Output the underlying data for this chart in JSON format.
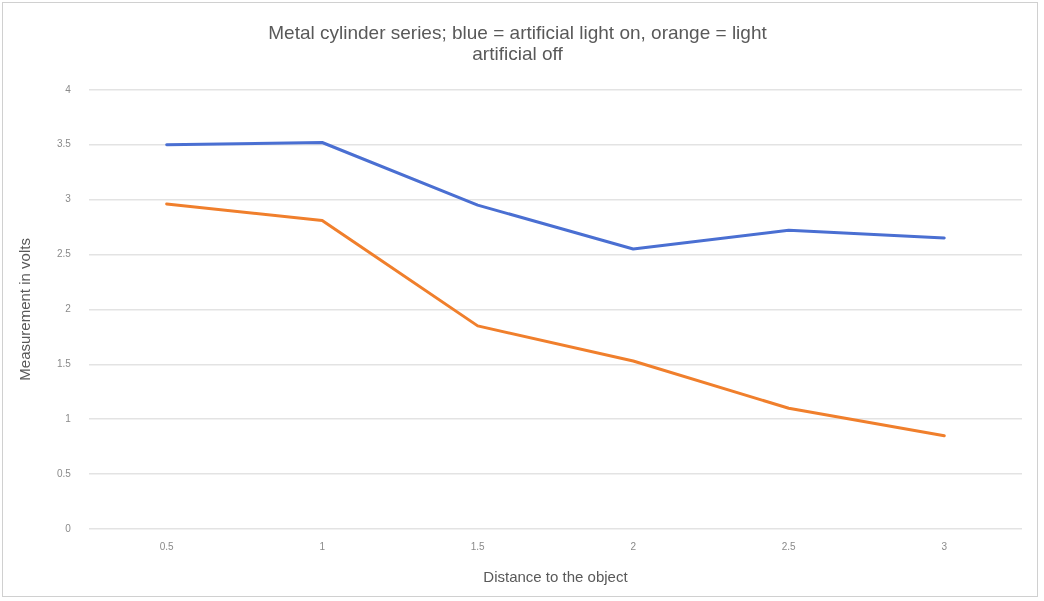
{
  "chart_data": {
    "type": "line",
    "title": "Metal cylinder series; blue = artificial light on, orange = light\nartificial off",
    "xlabel": "Distance to the object",
    "ylabel": "Measurement in volts",
    "categories": [
      "0.5",
      "1",
      "1.5",
      "2",
      "2.5",
      "3"
    ],
    "series": [
      {
        "color": "#4a6fd2",
        "values": [
          3.5,
          3.52,
          2.95,
          2.55,
          2.72,
          2.65
        ]
      },
      {
        "color": "#f07f2c",
        "values": [
          2.96,
          2.81,
          1.85,
          1.53,
          1.1,
          0.85
        ]
      }
    ],
    "ylim": [
      0,
      4
    ],
    "yticks": [
      0,
      0.5,
      1,
      1.5,
      2,
      2.5,
      3,
      3.5,
      4
    ],
    "grid": "y",
    "legend": false,
    "marker": "none",
    "line_style": "solid"
  }
}
